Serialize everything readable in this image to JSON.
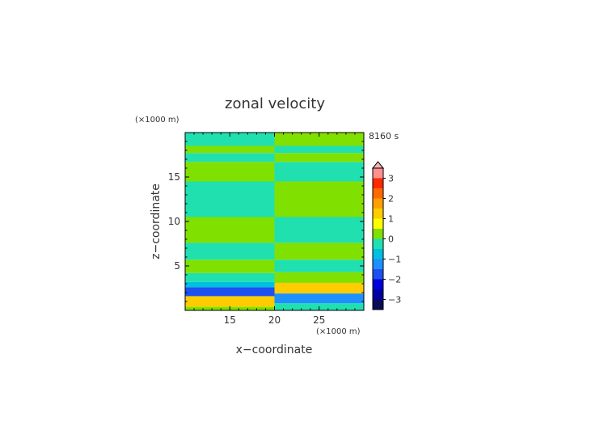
{
  "chart_data": {
    "type": "heatmap",
    "title": "zonal velocity",
    "xlabel": "x−coordinate",
    "ylabel": "z−coordinate",
    "x_unit": "(×1000 m)",
    "y_unit": "(×1000 m)",
    "time_label": "8160 s",
    "xlim": [
      10,
      30
    ],
    "ylim": [
      0,
      20
    ],
    "x_ticks": [
      15,
      20,
      25
    ],
    "y_ticks": [
      5,
      10,
      15
    ],
    "colorbar": {
      "min": -3.5,
      "max": 3.5,
      "step": 0.5,
      "extend_max": true,
      "tick_values": [
        3,
        2,
        1,
        0,
        -1,
        -2,
        -3
      ],
      "tick_labels": [
        "3",
        "2",
        "1",
        "0",
        "−1",
        "−2",
        "−3"
      ],
      "colors": [
        "#0a0a5a",
        "#0000a0",
        "#0000dd",
        "#1e50f0",
        "#1e90ff",
        "#00c0e0",
        "#20e0b0",
        "#80e000",
        "#ffff00",
        "#ffcc00",
        "#ffa000",
        "#ff6a00",
        "#ff2800",
        "#ff9090"
      ],
      "over_color": "#ffb0b0"
    },
    "field_bands_left": [
      {
        "z": [
          0,
          0.4
        ],
        "value": 0.2
      },
      {
        "z": [
          0.4,
          1.6
        ],
        "value": 1.2
      },
      {
        "z": [
          1.6,
          2.6
        ],
        "value": -1.8
      },
      {
        "z": [
          2.6,
          3.2
        ],
        "value": -0.7
      },
      {
        "z": [
          3.2,
          4.2
        ],
        "value": -0.2
      },
      {
        "z": [
          4.2,
          5.7
        ],
        "value": 0.3
      },
      {
        "z": [
          5.7,
          7.6
        ],
        "value": -0.3
      },
      {
        "z": [
          7.6,
          10.5
        ],
        "value": 0.3
      },
      {
        "z": [
          10.5,
          14.5
        ],
        "value": -0.3
      },
      {
        "z": [
          14.5,
          16.7
        ],
        "value": 0.3
      },
      {
        "z": [
          16.7,
          17.7
        ],
        "value": -0.3
      },
      {
        "z": [
          17.7,
          18.5
        ],
        "value": 0.3
      },
      {
        "z": [
          18.5,
          20
        ],
        "value": -0.3
      }
    ],
    "field_bands_right": [
      {
        "z": [
          0,
          0.8
        ],
        "value": -0.4
      },
      {
        "z": [
          0.8,
          1.9
        ],
        "value": -1.2
      },
      {
        "z": [
          1.9,
          3.1
        ],
        "value": 1.3
      },
      {
        "z": [
          3.1,
          4.3
        ],
        "value": 0.2
      },
      {
        "z": [
          4.3,
          5.7
        ],
        "value": -0.3
      },
      {
        "z": [
          5.7,
          7.6
        ],
        "value": 0.3
      },
      {
        "z": [
          7.6,
          10.5
        ],
        "value": -0.3
      },
      {
        "z": [
          10.5,
          14.5
        ],
        "value": 0.3
      },
      {
        "z": [
          14.5,
          16.7
        ],
        "value": -0.3
      },
      {
        "z": [
          16.7,
          17.7
        ],
        "value": 0.3
      },
      {
        "z": [
          17.7,
          18.5
        ],
        "value": -0.3
      },
      {
        "z": [
          18.5,
          20
        ],
        "value": 0.3
      }
    ],
    "discontinuity_x": 20
  }
}
